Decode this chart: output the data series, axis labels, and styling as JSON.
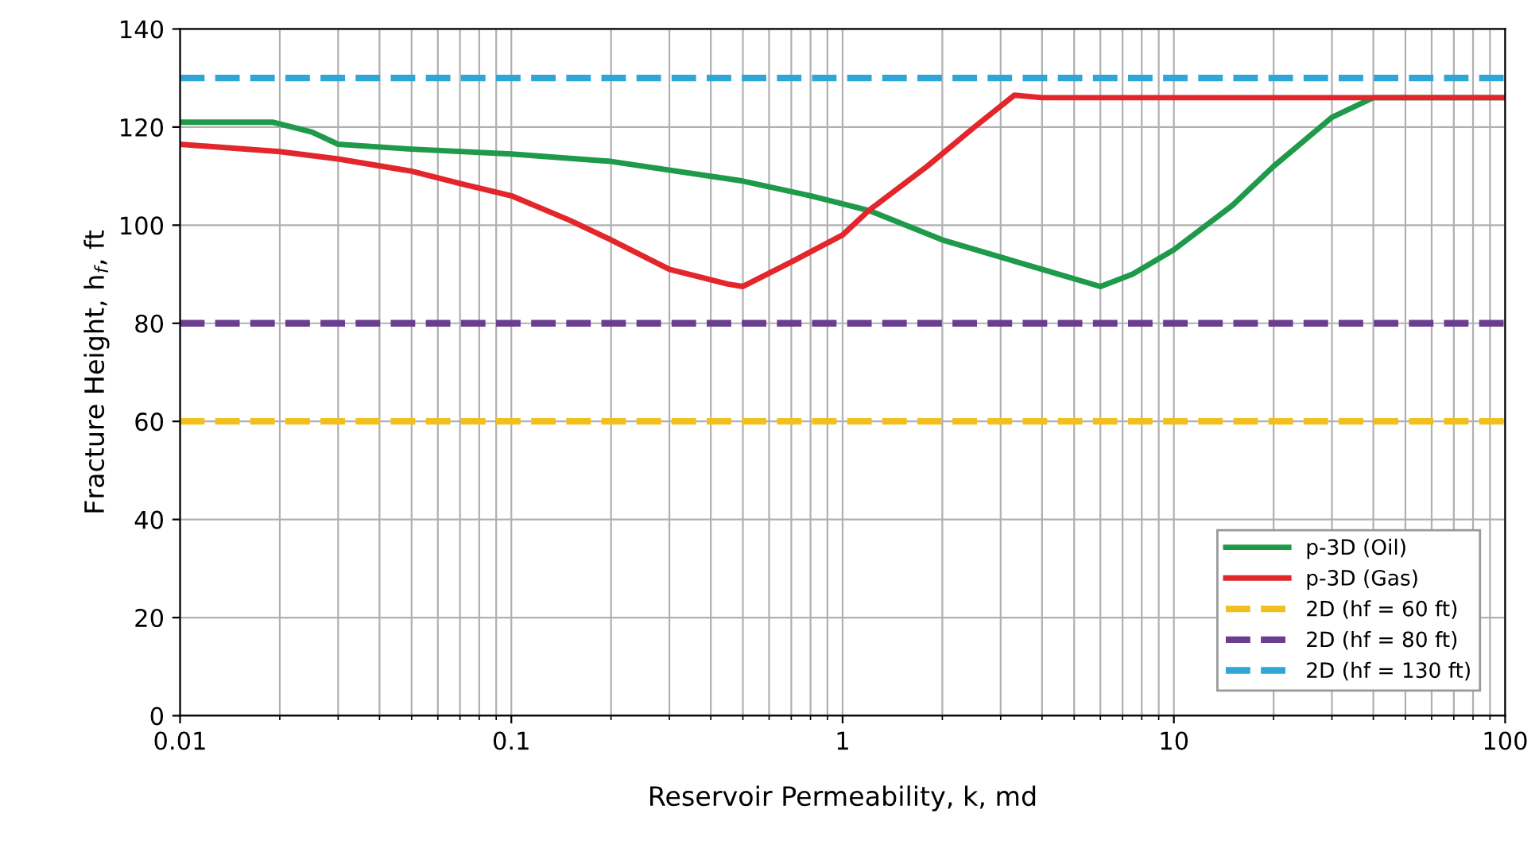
{
  "chart_data": {
    "type": "line",
    "xlabel": "Reservoir Permeability, k, md",
    "ylabel": "Fracture Height, h$_{f}$, ft",
    "log": "x",
    "xlim": [
      0.01,
      100
    ],
    "xticks": [
      0.01,
      0.1,
      1,
      10,
      100
    ],
    "ylim": [
      0,
      140
    ],
    "yticks": [
      0,
      20,
      40,
      60,
      80,
      100,
      120,
      140
    ],
    "grid": true,
    "legend": "bottom right",
    "series": [
      {
        "name": "p-3D (Oil)",
        "color": "#1e9a4a",
        "line_style": "solid",
        "x": [
          0.01,
          0.019,
          0.025,
          0.03,
          0.05,
          0.1,
          0.2,
          0.5,
          0.8,
          1.2,
          2,
          4,
          6,
          7.5,
          10,
          15,
          20,
          30,
          40,
          100
        ],
        "values": [
          121,
          121,
          119,
          116.5,
          115.5,
          114.5,
          113,
          109,
          106,
          103,
          97,
          91,
          87.5,
          90,
          95,
          104,
          112,
          122,
          126,
          126
        ]
      },
      {
        "name": "p-3D (Gas)",
        "color": "#e3262b",
        "line_style": "solid",
        "x": [
          0.01,
          0.02,
          0.03,
          0.05,
          0.07,
          0.1,
          0.15,
          0.2,
          0.3,
          0.45,
          0.5,
          0.7,
          1,
          1.2,
          1.8,
          2.5,
          3.3,
          4,
          100
        ],
        "values": [
          116.5,
          115,
          113.5,
          111,
          108.5,
          106,
          101,
          97,
          91,
          88,
          87.5,
          92.5,
          98,
          103,
          112,
          120,
          126.5,
          126,
          126
        ]
      },
      {
        "name": "2D (hf = 60 ft)",
        "color": "#f2c01e",
        "line_style": "dashed",
        "x": [
          0.01,
          100
        ],
        "values": [
          60,
          60
        ]
      },
      {
        "name": "2D (hf = 80 ft)",
        "color": "#6a3d8f",
        "line_style": "dashed",
        "x": [
          0.01,
          100
        ],
        "values": [
          80,
          80
        ]
      },
      {
        "name": "2D (hf = 130 ft)",
        "color": "#2ea6d8",
        "line_style": "dashed",
        "x": [
          0.01,
          100
        ],
        "values": [
          130,
          130
        ]
      }
    ]
  }
}
